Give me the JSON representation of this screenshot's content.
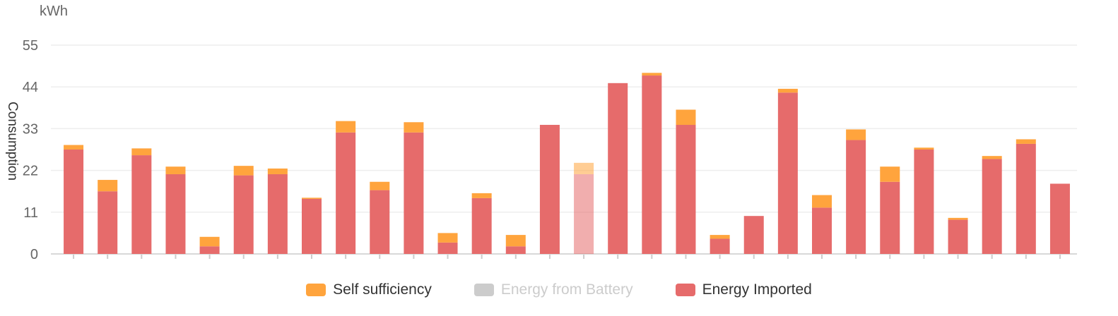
{
  "chart_data": {
    "type": "bar",
    "stacked": true,
    "unit": "kWh",
    "ylabel": "Consumption",
    "ylim": [
      0,
      55
    ],
    "yticks": [
      0,
      11,
      22,
      33,
      44,
      55
    ],
    "grid": true,
    "legend_position": "bottom-center",
    "series": [
      {
        "name": "Energy Imported",
        "color": "#e66b6b",
        "values": [
          27.5,
          16.5,
          26,
          21,
          2,
          20.7,
          21,
          14.5,
          32,
          16.8,
          32,
          3,
          14.7,
          2,
          34,
          21,
          45,
          47,
          34,
          4,
          10,
          42.5,
          12.2,
          30,
          19,
          27.5,
          9,
          25,
          29,
          18.5
        ]
      },
      {
        "name": "Self sufficiency",
        "color": "#ffa43d",
        "values": [
          1.2,
          3,
          1.8,
          2,
          2.5,
          2.5,
          1.5,
          0.3,
          3,
          2.2,
          2.7,
          2.5,
          1.3,
          3,
          0,
          3,
          0,
          0.7,
          4,
          1,
          0,
          1,
          3.3,
          2.8,
          4,
          0.5,
          0.5,
          0.8,
          1.2,
          0
        ]
      },
      {
        "name": "Energy from Battery",
        "color": "#cccccc",
        "hidden": true,
        "values": [
          0,
          0,
          0,
          0,
          0,
          0,
          0,
          0,
          0,
          0,
          0,
          0,
          0,
          0,
          0,
          0,
          0,
          0,
          0,
          0,
          0,
          0,
          0,
          0,
          0,
          0,
          0,
          0,
          0,
          0
        ]
      }
    ],
    "highlighted_index": 15
  },
  "legend": {
    "items": [
      {
        "label": "Self sufficiency",
        "color": "#ffa43d",
        "off": false
      },
      {
        "label": "Energy from Battery",
        "color": "#cccccc",
        "off": true
      },
      {
        "label": "Energy Imported",
        "color": "#e66b6b",
        "off": false
      }
    ]
  }
}
